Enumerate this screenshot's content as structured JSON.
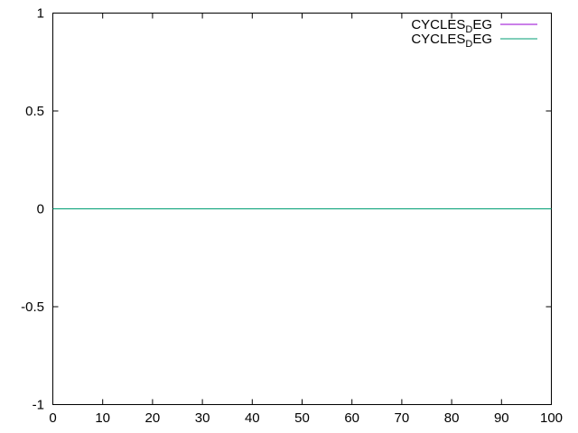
{
  "chart_data": {
    "type": "line",
    "title": "",
    "xlabel": "",
    "ylabel": "",
    "xlim": [
      0,
      100
    ],
    "ylim": [
      -1,
      1
    ],
    "x_ticks": [
      0,
      10,
      20,
      30,
      40,
      50,
      60,
      70,
      80,
      90,
      100
    ],
    "y_ticks": [
      -1,
      -0.5,
      0,
      0.5,
      1
    ],
    "grid": false,
    "legend_position": "top-right",
    "series": [
      {
        "name": "CYCLES_DEG",
        "legend_base": "CYCLES",
        "legend_sub": "D",
        "legend_rest": "EG",
        "color": "#9400d3",
        "x": [
          0,
          100
        ],
        "y": [
          0,
          0
        ]
      },
      {
        "name": "CYCLES_DEG",
        "legend_base": "CYCLES",
        "legend_sub": "D",
        "legend_rest": "EG",
        "color": "#009e73",
        "x": [
          0,
          100
        ],
        "y": [
          0,
          0
        ]
      }
    ]
  }
}
